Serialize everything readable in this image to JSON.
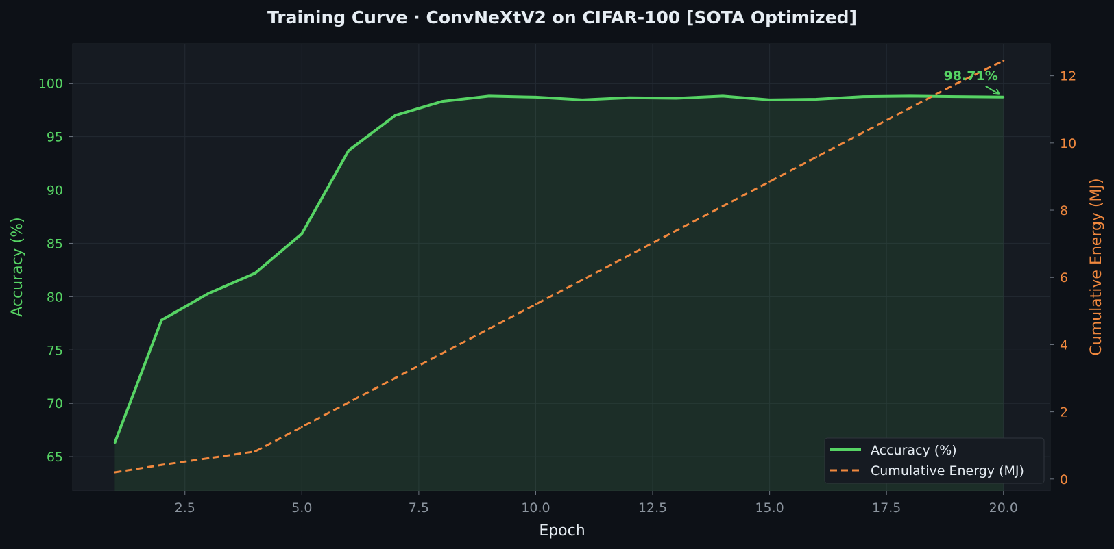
{
  "chart_data": {
    "type": "line",
    "title": "Training Curve  ·  ConvNeXtV2 on CIFAR-100  [SOTA Optimized]",
    "xlabel": "Epoch",
    "ylabel_left": "Accuracy (%)",
    "ylabel_right": "Cumulative Energy (MJ)",
    "xlim": [
      0.1,
      21
    ],
    "ylim_left": [
      61.8,
      103.7
    ],
    "ylim_right": [
      -0.35,
      12.95
    ],
    "x_ticks": [
      "2.5",
      "5.0",
      "7.5",
      "10.0",
      "12.5",
      "15.0",
      "17.5",
      "20.0"
    ],
    "y_left_ticks": [
      "65",
      "70",
      "75",
      "80",
      "85",
      "90",
      "95",
      "100"
    ],
    "y_right_ticks": [
      "0",
      "2",
      "4",
      "6",
      "8",
      "10",
      "12"
    ],
    "grid": true,
    "legend_position": "lower-right",
    "x": [
      1,
      2,
      3,
      4,
      5,
      6,
      7,
      8,
      9,
      10,
      11,
      12,
      13,
      14,
      15,
      16,
      17,
      18,
      19,
      20
    ],
    "series": [
      {
        "name": "Accuracy (%)",
        "axis": "left",
        "color": "#56d364",
        "style": "solid",
        "fill": true,
        "values": [
          66.3,
          77.8,
          80.3,
          82.2,
          85.9,
          93.7,
          97.0,
          98.3,
          98.8,
          98.7,
          98.45,
          98.65,
          98.6,
          98.8,
          98.45,
          98.5,
          98.75,
          98.8,
          98.75,
          98.71
        ]
      },
      {
        "name": "Cumulative Energy (MJ)",
        "axis": "right",
        "color": "#f0883e",
        "style": "dashed",
        "fill": false,
        "values": [
          0.2,
          0.42,
          0.62,
          0.82,
          1.55,
          2.28,
          3.01,
          3.74,
          4.47,
          5.2,
          5.93,
          6.66,
          7.39,
          8.12,
          8.85,
          9.58,
          10.31,
          11.04,
          11.77,
          12.45
        ]
      }
    ],
    "annotation": {
      "text": "98.71%",
      "x": 20,
      "y": 98.71,
      "color": "#56d364"
    }
  }
}
